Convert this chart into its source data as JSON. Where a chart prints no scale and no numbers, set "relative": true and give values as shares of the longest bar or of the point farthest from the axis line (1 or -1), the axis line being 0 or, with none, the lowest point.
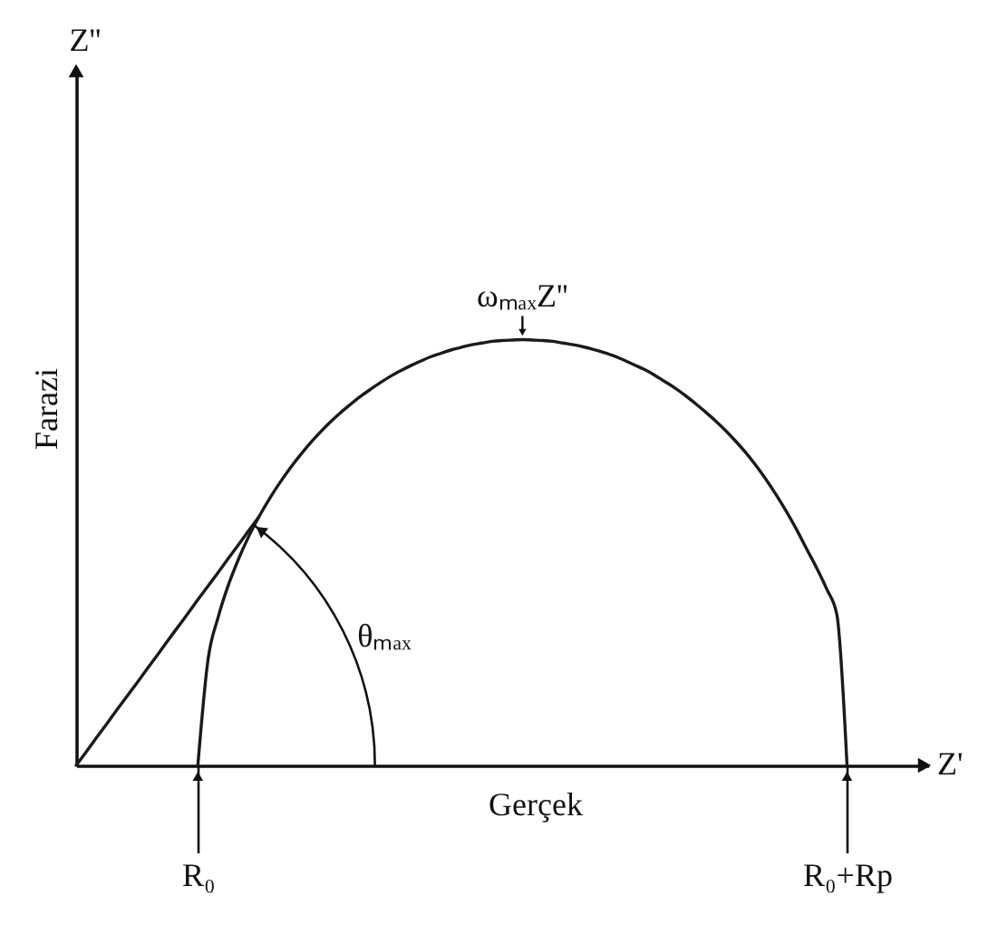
{
  "chart_data": {
    "type": "line",
    "relative": true,
    "xlabel": "Gerçek",
    "ylabel": "Farazi",
    "categories": [
      null,
      null,
      null,
      null,
      null,
      null,
      null,
      null,
      null,
      null,
      null,
      null,
      "R₀",
      null,
      null,
      null,
      null,
      null,
      null,
      null,
      null,
      null,
      null,
      null,
      null,
      null,
      null,
      null,
      null,
      null,
      null,
      null,
      null,
      null,
      null,
      null,
      null,
      null,
      null,
      null,
      null,
      null,
      null,
      null,
      null,
      null,
      null,
      null,
      null,
      null,
      null,
      null,
      null,
      null,
      null,
      null,
      null,
      null,
      null,
      null,
      null,
      null,
      null,
      null,
      null,
      null,
      null,
      null,
      null,
      null,
      null,
      null,
      null,
      null,
      null,
      null,
      "R₀+Rp",
      null,
      null,
      null,
      null,
      null,
      null,
      null,
      null
    ],
    "series": [
      {
        "color": "#1a1a1a",
        "values": [
          null,
          null,
          null,
          null,
          null,
          null,
          null,
          null,
          null,
          null,
          null,
          null,
          0,
          0.248,
          0.348,
          0.423,
          0.484,
          0.537,
          0.583,
          0.624,
          0.661,
          0.695,
          0.726,
          0.755,
          0.781,
          0.805,
          0.827,
          0.847,
          0.866,
          0.883,
          0.899,
          0.914,
          0.927,
          0.939,
          0.95,
          0.96,
          0.968,
          0.976,
          0.982,
          0.988,
          0.992,
          0.996,
          0.998,
          0.999,
          1,
          0.999,
          0.998,
          0.996,
          0.992,
          0.988,
          0.983,
          0.977,
          0.97,
          0.962,
          0.952,
          0.941,
          0.93,
          0.917,
          0.902,
          0.887,
          0.87,
          0.851,
          0.831,
          0.81,
          0.787,
          0.762,
          0.735,
          0.705,
          0.672,
          0.636,
          0.597,
          0.555,
          0.509,
          0.464,
          0.414,
          0.354,
          0,
          null,
          null,
          null,
          null,
          null,
          null,
          null,
          null
        ]
      },
      {
        "color": "#1a1a1a",
        "values": [
          0,
          0.032,
          0.065,
          0.097,
          0.13,
          0.162,
          0.194,
          0.227,
          0.259,
          0.292,
          0.324,
          0.356,
          0.389,
          0.421,
          0.453,
          0.486,
          0.518,
          0.551,
          0.583,
          null,
          null,
          null,
          null,
          null,
          null,
          null,
          null,
          null,
          null,
          null,
          null,
          null,
          null,
          null,
          null,
          null,
          null,
          null,
          null,
          null,
          null,
          null,
          null,
          null,
          null,
          null,
          null,
          null,
          null,
          null,
          null,
          null,
          null,
          null,
          null,
          null,
          null,
          null,
          null,
          null,
          null,
          null,
          null,
          null,
          null,
          null,
          null,
          null,
          null,
          null,
          null,
          null,
          null,
          null,
          null,
          null,
          null,
          null,
          null,
          null,
          null,
          null,
          null,
          null,
          null
        ]
      }
    ],
    "annotations": [
      "Z''",
      "Z'",
      "ωₘₐₓZ''",
      "θₘₐₓ"
    ]
  }
}
